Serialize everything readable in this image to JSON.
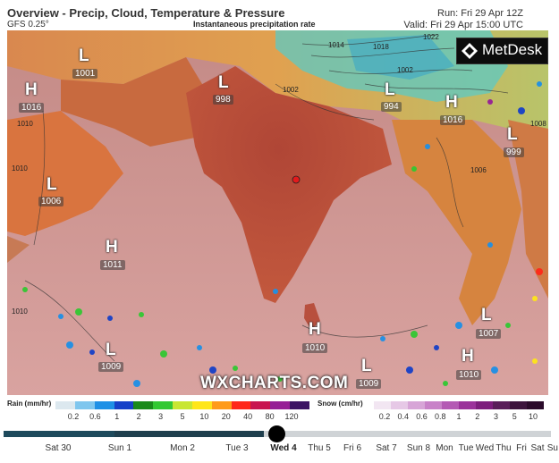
{
  "header": {
    "title": "Overview - Precip, Cloud, Temperature & Pressure",
    "model": "GFS 0.25°",
    "subtitle": "Instantaneous precipitation rate",
    "run": "Run: Fri 29 Apr 12Z",
    "valid": "Valid: Fri 29 Apr 15:00 UTC"
  },
  "brand": {
    "logo_text": "MetDesk",
    "watermark": "WXCHARTS.COM"
  },
  "pressure_centres": [
    {
      "symbol": "L",
      "value": "1001"
    },
    {
      "symbol": "H",
      "value": "1016"
    },
    {
      "symbol": "L",
      "value": "998"
    },
    {
      "symbol": "L",
      "value": "994"
    },
    {
      "symbol": "H",
      "value": "1016"
    },
    {
      "symbol": "L",
      "value": "999"
    },
    {
      "symbol": "L",
      "value": "1006"
    },
    {
      "symbol": "H",
      "value": "1011"
    },
    {
      "symbol": "L",
      "value": "1009"
    },
    {
      "symbol": "H",
      "value": "1010"
    },
    {
      "symbol": "L",
      "value": "1007"
    },
    {
      "symbol": "L",
      "value": "1009"
    },
    {
      "symbol": "H",
      "value": "1010"
    }
  ],
  "isobar_labels": [
    "1014",
    "1018",
    "1022",
    "1002",
    "1002",
    "1010",
    "1010",
    "1006",
    "1010",
    "1008"
  ],
  "legend": {
    "rain_title": "Rain (mm/hr)",
    "rain_ticks": [
      "0.2",
      "0.6",
      "1",
      "2",
      "3",
      "5",
      "10",
      "20",
      "40",
      "80",
      "120"
    ],
    "rain_colors": [
      "#dce8ef",
      "#7fc6ee",
      "#1e90e6",
      "#1640c8",
      "#1a8a1a",
      "#32c832",
      "#c8e632",
      "#ffe619",
      "#ff9b19",
      "#ff2819",
      "#c81450",
      "#961e96",
      "#3c1464"
    ],
    "snow_title": "Snow (cm/hr)",
    "snow_ticks": [
      "0.2",
      "0.4",
      "0.6",
      "0.8",
      "1",
      "2",
      "3",
      "5",
      "10"
    ],
    "snow_colors": [
      "#f2e6f2",
      "#e6c8e6",
      "#d7a5d7",
      "#c882c8",
      "#b45ab4",
      "#9b329b",
      "#7d1e7d",
      "#5a1e5a",
      "#3c143c",
      "#2a0a2a"
    ]
  },
  "timeline": {
    "days": [
      "Sat 30",
      "Sun 1",
      "Mon 2",
      "Tue 3",
      "Wed 4",
      "Thu 5",
      "Fri 6",
      "Sat 7",
      "Sun 8",
      "Mon",
      "Tue",
      "Wed",
      "Thu",
      "Fri",
      "Sat",
      "Su"
    ],
    "active_day": "Wed 4"
  },
  "colors": {
    "land_hot": "#b5503a",
    "ocean": "#c99090",
    "cold": "#5cc9c4"
  }
}
